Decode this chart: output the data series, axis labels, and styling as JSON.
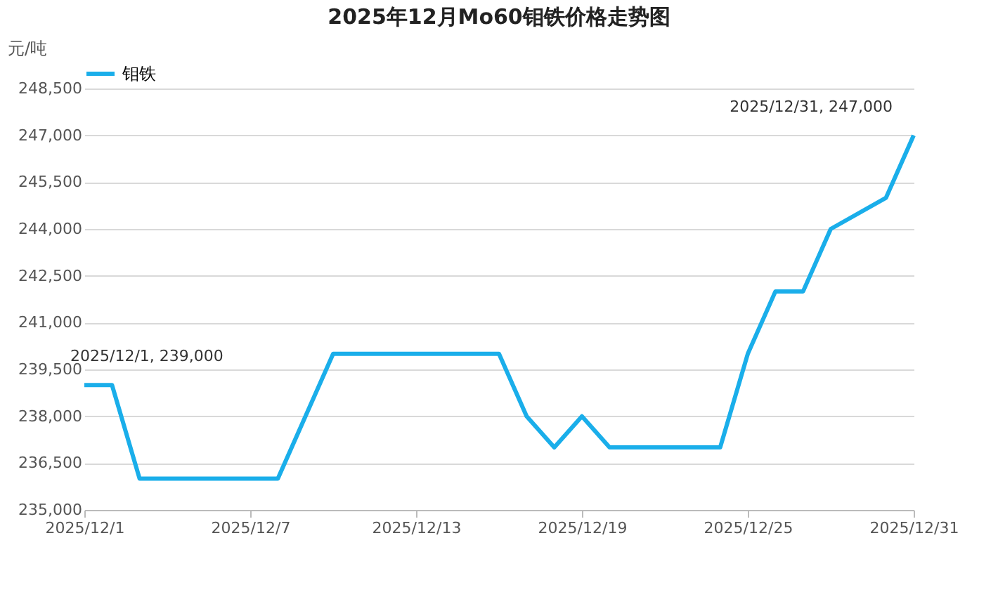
{
  "chart_data": {
    "type": "line",
    "title": "2025年12月Mo60钼铁价格走势图",
    "ylabel": "元/吨",
    "x": [
      "2025-12-01",
      "2025-12-02",
      "2025-12-03",
      "2025-12-08",
      "2025-12-10",
      "2025-12-16",
      "2025-12-17",
      "2025-12-18",
      "2025-12-19",
      "2025-12-20",
      "2025-12-24",
      "2025-12-25",
      "2025-12-26",
      "2025-12-27",
      "2025-12-28",
      "2025-12-30",
      "2025-12-31"
    ],
    "series": [
      {
        "name": "钼铁",
        "color": "#1aaeea",
        "values": [
          239000,
          239000,
          236000,
          236000,
          240000,
          240000,
          238000,
          237000,
          238000,
          237000,
          237000,
          240000,
          242000,
          242000,
          244000,
          245000,
          247000
        ]
      }
    ],
    "xlim": [
      "2025-12-01",
      "2025-12-31"
    ],
    "xticks": [
      {
        "value": "2025-12-01",
        "label": "2025/12/1"
      },
      {
        "value": "2025-12-07",
        "label": "2025/12/7"
      },
      {
        "value": "2025-12-13",
        "label": "2025/12/13"
      },
      {
        "value": "2025-12-19",
        "label": "2025/12/19"
      },
      {
        "value": "2025-12-25",
        "label": "2025/12/25"
      },
      {
        "value": "2025-12-31",
        "label": "2025/12/31"
      }
    ],
    "ylim": [
      235000,
      248500
    ],
    "yticks": [
      {
        "value": 235000,
        "label": "235,000"
      },
      {
        "value": 236500,
        "label": "236,500"
      },
      {
        "value": 238000,
        "label": "238,000"
      },
      {
        "value": 239500,
        "label": "239,500"
      },
      {
        "value": 241000,
        "label": "241,000"
      },
      {
        "value": 242500,
        "label": "242,500"
      },
      {
        "value": 244000,
        "label": "244,000"
      },
      {
        "value": 245500,
        "label": "245,500"
      },
      {
        "value": 247000,
        "label": "247,000"
      },
      {
        "value": 248500,
        "label": "248,500"
      }
    ],
    "annotations": [
      {
        "text": "2025/12/1, 239,000",
        "x": "2025-12-01",
        "y": 239000
      },
      {
        "text": "2025/12/31, 247,000",
        "x": "2025-12-31",
        "y": 247000
      }
    ],
    "grid": "y",
    "legend": "top",
    "marker": "none",
    "line_style": "solid"
  }
}
